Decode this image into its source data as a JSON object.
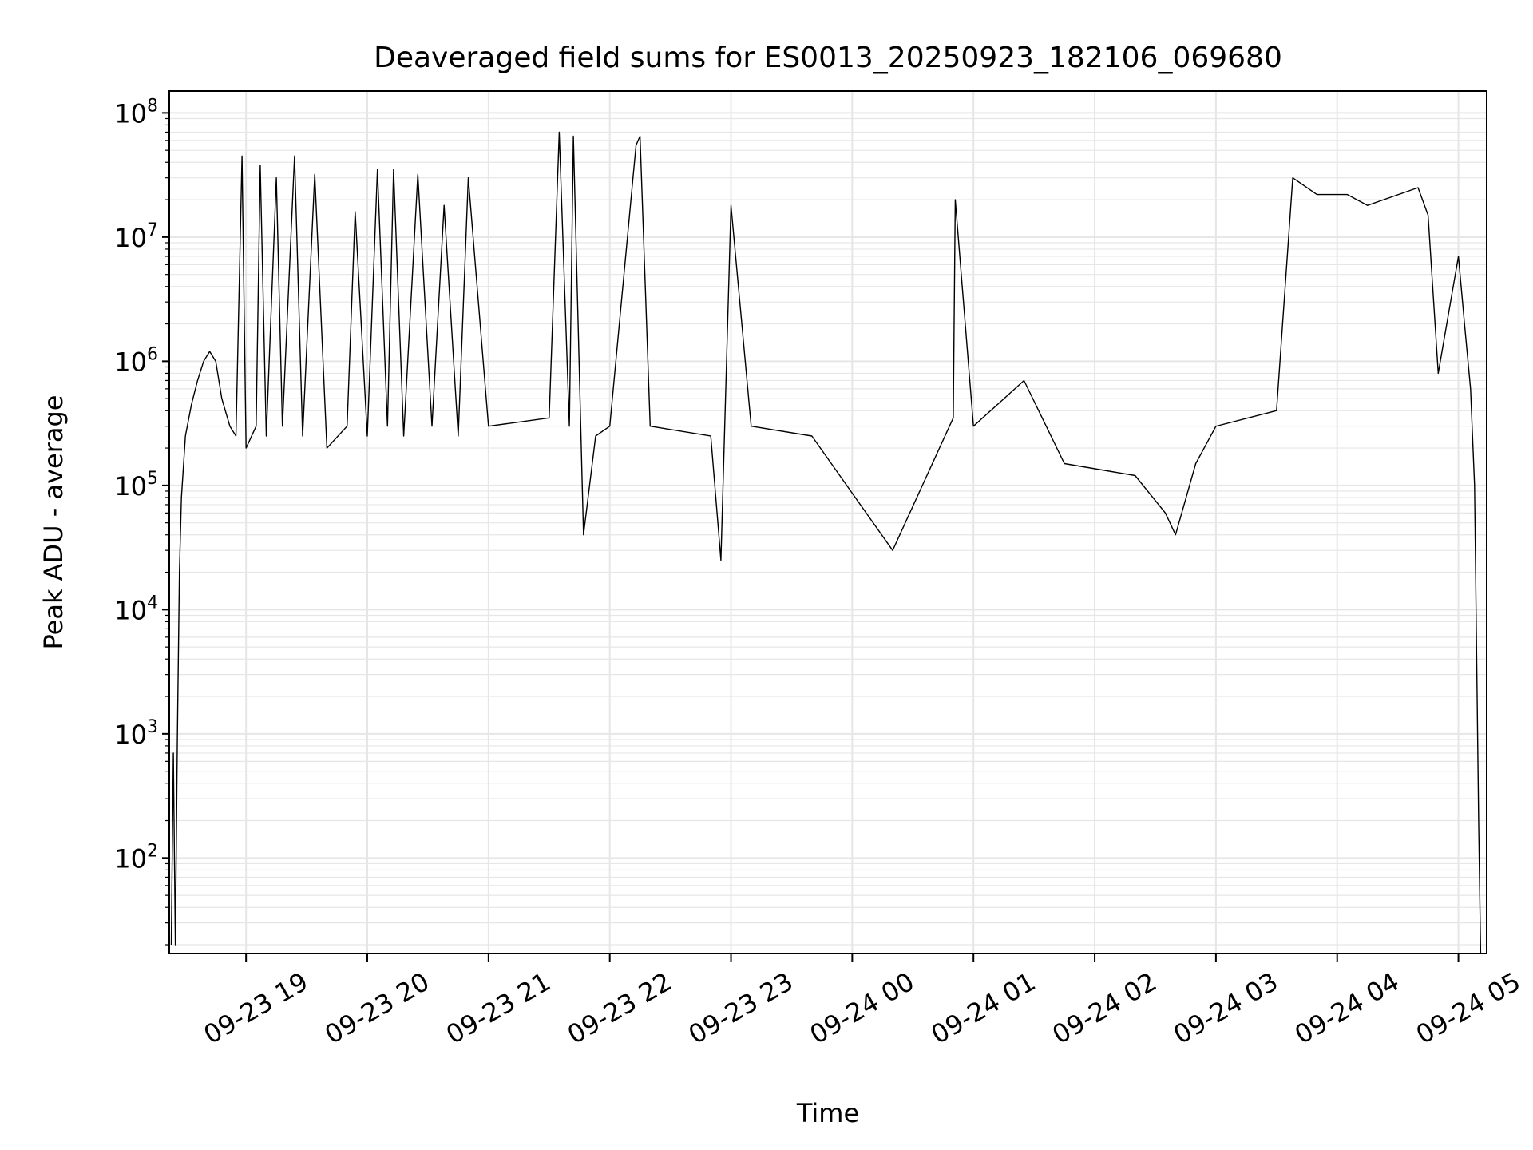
{
  "chart_data": {
    "type": "line",
    "title": "Deaveraged field sums for ES0013_20250923_182106_069680",
    "xlabel": "Time",
    "ylabel": "Peak ADU - average",
    "y_scale": "log",
    "ylim": [
      17,
      150000000
    ],
    "xlim": [
      "2025-09-23 18:22",
      "2025-09-24 05:14"
    ],
    "grid": true,
    "line_color": "#000000",
    "grid_color": "#e6e6e6",
    "x_ticks": [
      {
        "label": "09-23 19",
        "value": "2025-09-23 19:00"
      },
      {
        "label": "09-23 20",
        "value": "2025-09-23 20:00"
      },
      {
        "label": "09-23 21",
        "value": "2025-09-23 21:00"
      },
      {
        "label": "09-23 22",
        "value": "2025-09-23 22:00"
      },
      {
        "label": "09-23 23",
        "value": "2025-09-23 23:00"
      },
      {
        "label": "09-24 00",
        "value": "2025-09-24 00:00"
      },
      {
        "label": "09-24 01",
        "value": "2025-09-24 01:00"
      },
      {
        "label": "09-24 02",
        "value": "2025-09-24 02:00"
      },
      {
        "label": "09-24 03",
        "value": "2025-09-24 03:00"
      },
      {
        "label": "09-24 04",
        "value": "2025-09-24 04:00"
      },
      {
        "label": "09-24 05",
        "value": "2025-09-24 05:00"
      }
    ],
    "y_ticks": [
      {
        "base": "10",
        "exp": "2",
        "value": 100
      },
      {
        "base": "10",
        "exp": "3",
        "value": 1000
      },
      {
        "base": "10",
        "exp": "4",
        "value": 10000
      },
      {
        "base": "10",
        "exp": "5",
        "value": 100000
      },
      {
        "base": "10",
        "exp": "6",
        "value": 1000000
      },
      {
        "base": "10",
        "exp": "7",
        "value": 10000000
      },
      {
        "base": "10",
        "exp": "8",
        "value": 100000000
      }
    ],
    "series": [
      {
        "points": [
          [
            "2025-09-23 18:23",
            20
          ],
          [
            "2025-09-23 18:24",
            700
          ],
          [
            "2025-09-23 18:25",
            20
          ],
          [
            "2025-09-23 18:26",
            900
          ],
          [
            "2025-09-23 18:27",
            20000
          ],
          [
            "2025-09-23 18:28",
            80000
          ],
          [
            "2025-09-23 18:30",
            250000
          ],
          [
            "2025-09-23 18:33",
            450000
          ],
          [
            "2025-09-23 18:36",
            700000
          ],
          [
            "2025-09-23 18:39",
            1000000
          ],
          [
            "2025-09-23 18:42",
            1200000
          ],
          [
            "2025-09-23 18:45",
            1000000
          ],
          [
            "2025-09-23 18:48",
            500000
          ],
          [
            "2025-09-23 18:52",
            300000
          ],
          [
            "2025-09-23 18:55",
            250000
          ],
          [
            "2025-09-23 18:58",
            45000000
          ],
          [
            "2025-09-23 19:00",
            200000
          ],
          [
            "2025-09-23 19:05",
            300000
          ],
          [
            "2025-09-23 19:07",
            38000000
          ],
          [
            "2025-09-23 19:10",
            250000
          ],
          [
            "2025-09-23 19:15",
            30000000
          ],
          [
            "2025-09-23 19:18",
            300000
          ],
          [
            "2025-09-23 19:24",
            45000000
          ],
          [
            "2025-09-23 19:28",
            250000
          ],
          [
            "2025-09-23 19:34",
            32000000
          ],
          [
            "2025-09-23 19:40",
            200000
          ],
          [
            "2025-09-23 19:50",
            300000
          ],
          [
            "2025-09-23 19:54",
            16000000
          ],
          [
            "2025-09-23 20:00",
            250000
          ],
          [
            "2025-09-23 20:05",
            35000000
          ],
          [
            "2025-09-23 20:10",
            300000
          ],
          [
            "2025-09-23 20:13",
            35000000
          ],
          [
            "2025-09-23 20:18",
            250000
          ],
          [
            "2025-09-23 20:25",
            32000000
          ],
          [
            "2025-09-23 20:32",
            300000
          ],
          [
            "2025-09-23 20:38",
            18000000
          ],
          [
            "2025-09-23 20:45",
            250000
          ],
          [
            "2025-09-23 20:50",
            30000000
          ],
          [
            "2025-09-23 21:00",
            300000
          ],
          [
            "2025-09-23 21:30",
            350000
          ],
          [
            "2025-09-23 21:35",
            70000000
          ],
          [
            "2025-09-23 21:40",
            300000
          ],
          [
            "2025-09-23 21:42",
            65000000
          ],
          [
            "2025-09-23 21:47",
            40000
          ],
          [
            "2025-09-23 21:53",
            250000
          ],
          [
            "2025-09-23 22:00",
            300000
          ],
          [
            "2025-09-23 22:13",
            55000000
          ],
          [
            "2025-09-23 22:15",
            65000000
          ],
          [
            "2025-09-23 22:20",
            300000
          ],
          [
            "2025-09-23 22:50",
            250000
          ],
          [
            "2025-09-23 22:55",
            25000
          ],
          [
            "2025-09-23 23:00",
            18000000
          ],
          [
            "2025-09-23 23:10",
            300000
          ],
          [
            "2025-09-23 23:40",
            250000
          ],
          [
            "2025-09-24 00:20",
            30000
          ],
          [
            "2025-09-24 00:50",
            350000
          ],
          [
            "2025-09-24 00:51",
            20000000
          ],
          [
            "2025-09-24 01:00",
            300000
          ],
          [
            "2025-09-24 01:25",
            700000
          ],
          [
            "2025-09-24 01:45",
            150000
          ],
          [
            "2025-09-24 02:20",
            120000
          ],
          [
            "2025-09-24 02:35",
            60000
          ],
          [
            "2025-09-24 02:40",
            40000
          ],
          [
            "2025-09-24 02:50",
            150000
          ],
          [
            "2025-09-24 03:00",
            300000
          ],
          [
            "2025-09-24 03:30",
            400000
          ],
          [
            "2025-09-24 03:38",
            30000000
          ],
          [
            "2025-09-24 03:50",
            22000000
          ],
          [
            "2025-09-24 04:05",
            22000000
          ],
          [
            "2025-09-24 04:15",
            18000000
          ],
          [
            "2025-09-24 04:40",
            25000000
          ],
          [
            "2025-09-24 04:45",
            15000000
          ],
          [
            "2025-09-24 04:50",
            800000
          ],
          [
            "2025-09-24 05:00",
            7000000
          ],
          [
            "2025-09-24 05:03",
            2000000
          ],
          [
            "2025-09-24 05:06",
            600000
          ],
          [
            "2025-09-24 05:08",
            100000
          ],
          [
            "2025-09-24 05:10",
            200
          ],
          [
            "2025-09-24 05:11",
            17
          ]
        ]
      }
    ]
  }
}
